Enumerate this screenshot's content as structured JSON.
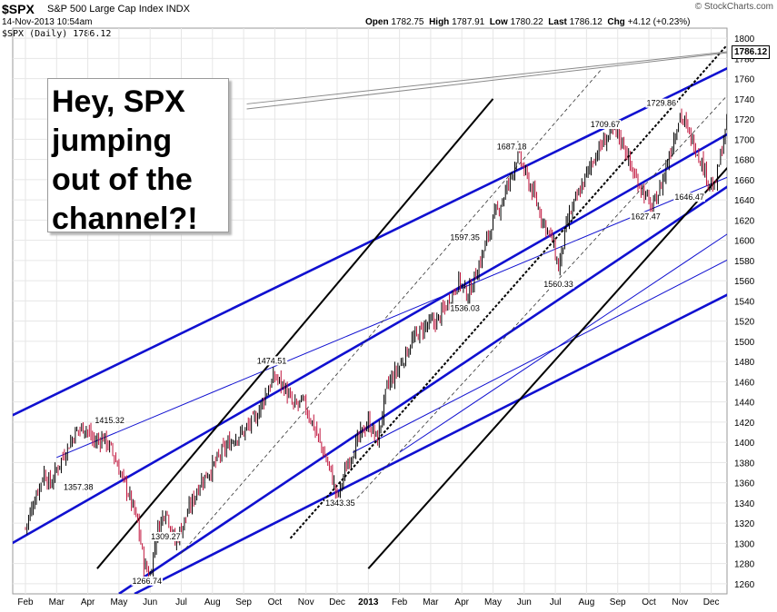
{
  "header": {
    "symbol": "$SPX",
    "description": "S&P 500 Large Cap Index  INDX",
    "datetime": "14-Nov-2013 10:54am",
    "legend": "$SPX (Daily) 1786.12",
    "quote": {
      "open_label": "Open",
      "open": "1782.75",
      "high_label": "High",
      "high": "1787.91",
      "low_label": "Low",
      "low": "1780.22",
      "last_label": "Last",
      "last": "1786.12",
      "chg_label": "Chg",
      "chg": "+4.12 (+0.23%)"
    },
    "brand": "© StockCharts.com"
  },
  "annotation": {
    "text": "Hey, SPX\njumping\nout of the\nchannel?!"
  },
  "chart_data": {
    "type": "candlestick",
    "title": "$SPX S&P 500 Large Cap Index INDX",
    "series_label": "$SPX (Daily) 1786.12",
    "last_value": "1786.12",
    "ylim": [
      1250,
      1810
    ],
    "y_ticks": [
      "1260",
      "1280",
      "1300",
      "1320",
      "1340",
      "1360",
      "1380",
      "1400",
      "1420",
      "1440",
      "1460",
      "1480",
      "1500",
      "1520",
      "1540",
      "1560",
      "1580",
      "1600",
      "1620",
      "1640",
      "1660",
      "1680",
      "1700",
      "1720",
      "1740",
      "1760",
      "1780",
      "1800"
    ],
    "x_ticks": [
      "Feb",
      "Mar",
      "Apr",
      "May",
      "Jun",
      "Jul",
      "Aug",
      "Sep",
      "Oct",
      "Nov",
      "Dec",
      "2013",
      "Feb",
      "Mar",
      "Apr",
      "May",
      "Jun",
      "Jul",
      "Aug",
      "Sep",
      "Oct",
      "Nov",
      "Dec"
    ],
    "price_path": [
      [
        0,
        1315
      ],
      [
        0.3,
        1345
      ],
      [
        0.6,
        1370
      ],
      [
        0.8,
        1358
      ],
      [
        1.1,
        1380
      ],
      [
        1.6,
        1410
      ],
      [
        1.9,
        1416
      ],
      [
        2.2,
        1400
      ],
      [
        2.5,
        1405
      ],
      [
        2.8,
        1390
      ],
      [
        3.1,
        1365
      ],
      [
        3.3,
        1350
      ],
      [
        3.6,
        1320
      ],
      [
        3.8,
        1280
      ],
      [
        4.0,
        1268
      ],
      [
        4.2,
        1310
      ],
      [
        4.5,
        1335
      ],
      [
        4.8,
        1300
      ],
      [
        5.2,
        1330
      ],
      [
        5.6,
        1360
      ],
      [
        6.0,
        1375
      ],
      [
        6.3,
        1390
      ],
      [
        6.7,
        1405
      ],
      [
        7.0,
        1410
      ],
      [
        7.4,
        1425
      ],
      [
        7.7,
        1448
      ],
      [
        8.0,
        1465
      ],
      [
        8.3,
        1455
      ],
      [
        8.6,
        1435
      ],
      [
        8.9,
        1440
      ],
      [
        9.2,
        1420
      ],
      [
        9.5,
        1395
      ],
      [
        9.8,
        1370
      ],
      [
        10.0,
        1345
      ],
      [
        10.4,
        1385
      ],
      [
        10.8,
        1410
      ],
      [
        11.0,
        1420
      ],
      [
        11.3,
        1402
      ],
      [
        11.6,
        1455
      ],
      [
        12.0,
        1475
      ],
      [
        12.4,
        1500
      ],
      [
        12.8,
        1515
      ],
      [
        13.2,
        1520
      ],
      [
        13.6,
        1540
      ],
      [
        13.9,
        1560
      ],
      [
        14.2,
        1545
      ],
      [
        14.6,
        1580
      ],
      [
        15.0,
        1620
      ],
      [
        15.3,
        1640
      ],
      [
        15.6,
        1665
      ],
      [
        15.8,
        1687
      ],
      [
        16.0,
        1668
      ],
      [
        16.3,
        1645
      ],
      [
        16.6,
        1620
      ],
      [
        16.9,
        1600
      ],
      [
        17.1,
        1572
      ],
      [
        17.4,
        1620
      ],
      [
        17.8,
        1650
      ],
      [
        18.2,
        1680
      ],
      [
        18.6,
        1700
      ],
      [
        18.9,
        1709
      ],
      [
        19.2,
        1695
      ],
      [
        19.5,
        1665
      ],
      [
        19.8,
        1650
      ],
      [
        20.1,
        1630
      ],
      [
        20.4,
        1655
      ],
      [
        20.7,
        1690
      ],
      [
        21.0,
        1725
      ],
      [
        21.3,
        1705
      ],
      [
        21.6,
        1685
      ],
      [
        21.9,
        1660
      ],
      [
        22.1,
        1650
      ],
      [
        22.4,
        1700
      ],
      [
        22.7,
        1740
      ],
      [
        23.0,
        1760
      ],
      [
        23.3,
        1755
      ],
      [
        23.6,
        1775
      ],
      [
        23.8,
        1786
      ]
    ],
    "price_labels": [
      {
        "text": "1357.38",
        "x": 1.7,
        "y": 1353
      },
      {
        "text": "1415.32",
        "x": 2.7,
        "y": 1419
      },
      {
        "text": "1266.74",
        "x": 3.9,
        "y": 1260
      },
      {
        "text": "1309.27",
        "x": 4.5,
        "y": 1304
      },
      {
        "text": "1474.51",
        "x": 7.9,
        "y": 1478
      },
      {
        "text": "1343.35",
        "x": 10.1,
        "y": 1337
      },
      {
        "text": "1597.35",
        "x": 14.1,
        "y": 1600
      },
      {
        "text": "1536.03",
        "x": 14.1,
        "y": 1530
      },
      {
        "text": "1687.18",
        "x": 15.6,
        "y": 1690
      },
      {
        "text": "1560.33",
        "x": 17.1,
        "y": 1554
      },
      {
        "text": "1709.67",
        "x": 18.6,
        "y": 1712
      },
      {
        "text": "1729.86",
        "x": 20.4,
        "y": 1733
      },
      {
        "text": "1627.47",
        "x": 19.9,
        "y": 1621
      },
      {
        "text": "1646.47",
        "x": 21.3,
        "y": 1640
      }
    ],
    "trendlines": [
      {
        "style": "thick-blue",
        "from": [
          -1,
          1418
        ],
        "to": [
          24.5,
          1800
        ]
      },
      {
        "style": "thin-blue",
        "from": [
          1,
          1385
        ],
        "to": [
          24.5,
          1688
        ]
      },
      {
        "style": "thick-blue",
        "from": [
          -1,
          1290
        ],
        "to": [
          24.5,
          1740
        ]
      },
      {
        "style": "thick-blue",
        "from": [
          3,
          1250
        ],
        "to": [
          24.5,
          1694
        ]
      },
      {
        "style": "thin-blue",
        "from": [
          10.5,
          1390
        ],
        "to": [
          24.5,
          1612
        ]
      },
      {
        "style": "thick-blue",
        "from": [
          3.5,
          1250
        ],
        "to": [
          24.5,
          1577
        ]
      },
      {
        "style": "thin-blue",
        "from": [
          12,
          1390
        ],
        "to": [
          24.5,
          1647
        ]
      },
      {
        "style": "thick-black",
        "from": [
          2.3,
          1275
        ],
        "to": [
          15,
          1740
        ]
      },
      {
        "style": "thick-black",
        "from": [
          11,
          1275
        ],
        "to": [
          24.5,
          1740
        ]
      },
      {
        "style": "dashed-black",
        "from": [
          8.5,
          1305
        ],
        "to": [
          22.5,
          1793
        ]
      },
      {
        "style": "dashed-thin",
        "from": [
          5,
          1290
        ],
        "to": [
          18.5,
          1770
        ]
      },
      {
        "style": "dashed-thin",
        "from": [
          10.5,
          1340
        ],
        "to": [
          24.5,
          1810
        ]
      },
      {
        "style": "gray",
        "from": [
          7.1,
          1735
        ],
        "to": [
          22.9,
          1788
        ]
      },
      {
        "style": "gray",
        "from": [
          7.1,
          1730
        ],
        "to": [
          22.9,
          1787
        ]
      }
    ]
  },
  "colors": {
    "up_candle": "#000000",
    "down_candle": "#c0143c",
    "channel_blue": "#1010d0",
    "grid": "#e6e6e6"
  }
}
